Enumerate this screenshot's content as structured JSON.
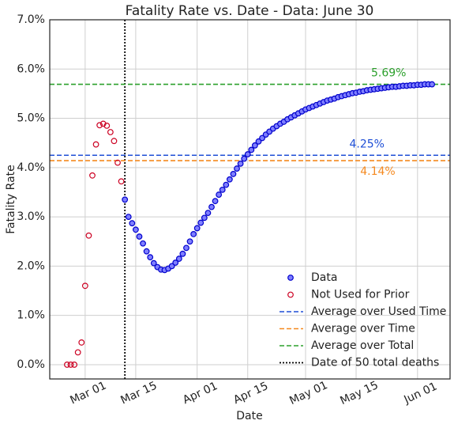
{
  "chart_data": {
    "type": "scatter",
    "title": "Fatality Rate vs. Date - Data: June 30",
    "x_label": "Date",
    "y_label": "Fatality Rate",
    "xlim": [
      51.2,
      162
    ],
    "ylim": [
      -0.29,
      7.0
    ],
    "xticks": [
      {
        "value": 61,
        "label": "Mar 01"
      },
      {
        "value": 75,
        "label": "Mar 15"
      },
      {
        "value": 92,
        "label": "Apr 01"
      },
      {
        "value": 106,
        "label": "Apr 15"
      },
      {
        "value": 122,
        "label": "May 01"
      },
      {
        "value": 136,
        "label": "May 15"
      },
      {
        "value": 153,
        "label": "Jun 01"
      }
    ],
    "yticks": [
      {
        "value": 0,
        "label": "0.0%"
      },
      {
        "value": 1,
        "label": "1.0%"
      },
      {
        "value": 2,
        "label": "2.0%"
      },
      {
        "value": 3,
        "label": "3.0%"
      },
      {
        "value": 4,
        "label": "4.0%"
      },
      {
        "value": 5,
        "label": "5.0%"
      },
      {
        "value": 6,
        "label": "6.0%"
      },
      {
        "value": 7,
        "label": "7.0%"
      }
    ],
    "grid": true,
    "legend": "lower right",
    "series": [
      {
        "name": "Data",
        "color": "#0000cc",
        "fill": "#7f7fff",
        "x": [
          72,
          73,
          74,
          75,
          76,
          77,
          78,
          79,
          80,
          81,
          82,
          83,
          84,
          85,
          86,
          87,
          88,
          89,
          90,
          91,
          92,
          93,
          94,
          95,
          96,
          97,
          98,
          99,
          100,
          101,
          102,
          103,
          104,
          105,
          106,
          107,
          108,
          109,
          110,
          111,
          112,
          113,
          114,
          115,
          116,
          117,
          118,
          119,
          120,
          121,
          122,
          123,
          124,
          125,
          126,
          127,
          128,
          129,
          130,
          131,
          132,
          133,
          134,
          135,
          136,
          137,
          138,
          139,
          140,
          141,
          142,
          143,
          144,
          145,
          146,
          147,
          148,
          149,
          150,
          151,
          152,
          153,
          154,
          155,
          156,
          157
        ],
        "values": [
          3.35,
          3.0,
          2.87,
          2.74,
          2.6,
          2.46,
          2.3,
          2.18,
          2.06,
          1.98,
          1.93,
          1.92,
          1.95,
          2.0,
          2.07,
          2.15,
          2.25,
          2.37,
          2.5,
          2.65,
          2.77,
          2.88,
          2.98,
          3.08,
          3.2,
          3.32,
          3.45,
          3.55,
          3.65,
          3.76,
          3.87,
          3.98,
          4.08,
          4.18,
          4.27,
          4.36,
          4.45,
          4.53,
          4.6,
          4.67,
          4.73,
          4.79,
          4.84,
          4.89,
          4.93,
          4.98,
          5.02,
          5.06,
          5.1,
          5.14,
          5.18,
          5.21,
          5.24,
          5.27,
          5.3,
          5.33,
          5.36,
          5.38,
          5.4,
          5.43,
          5.45,
          5.47,
          5.49,
          5.51,
          5.52,
          5.54,
          5.55,
          5.57,
          5.58,
          5.59,
          5.6,
          5.61,
          5.62,
          5.63,
          5.64,
          5.64,
          5.65,
          5.66,
          5.66,
          5.67,
          5.67,
          5.68,
          5.68,
          5.69,
          5.69,
          5.69
        ]
      },
      {
        "name": "Not Used for Prior",
        "color": "#cc0022",
        "fill": "none",
        "x": [
          56,
          57,
          58,
          59,
          60,
          61,
          62,
          63,
          64,
          65,
          66,
          67,
          68,
          69,
          70,
          71
        ],
        "values": [
          0,
          0,
          0,
          0.25,
          0.45,
          1.6,
          2.62,
          3.84,
          4.47,
          4.86,
          4.89,
          4.85,
          4.72,
          4.54,
          4.1,
          3.72
        ]
      }
    ],
    "hlines": [
      {
        "name": "Average over Used Time",
        "value": 4.25,
        "label": "4.25%",
        "color": "#1f4fd6"
      },
      {
        "name": "Average over Time",
        "value": 4.14,
        "label": "4.14%",
        "color": "#f5891f"
      },
      {
        "name": "Average over Total",
        "value": 5.69,
        "label": "5.69%",
        "color": "#2ca02c"
      }
    ],
    "vline": {
      "name": "Date of 50 total deaths",
      "x": 72,
      "color": "#000000"
    }
  }
}
